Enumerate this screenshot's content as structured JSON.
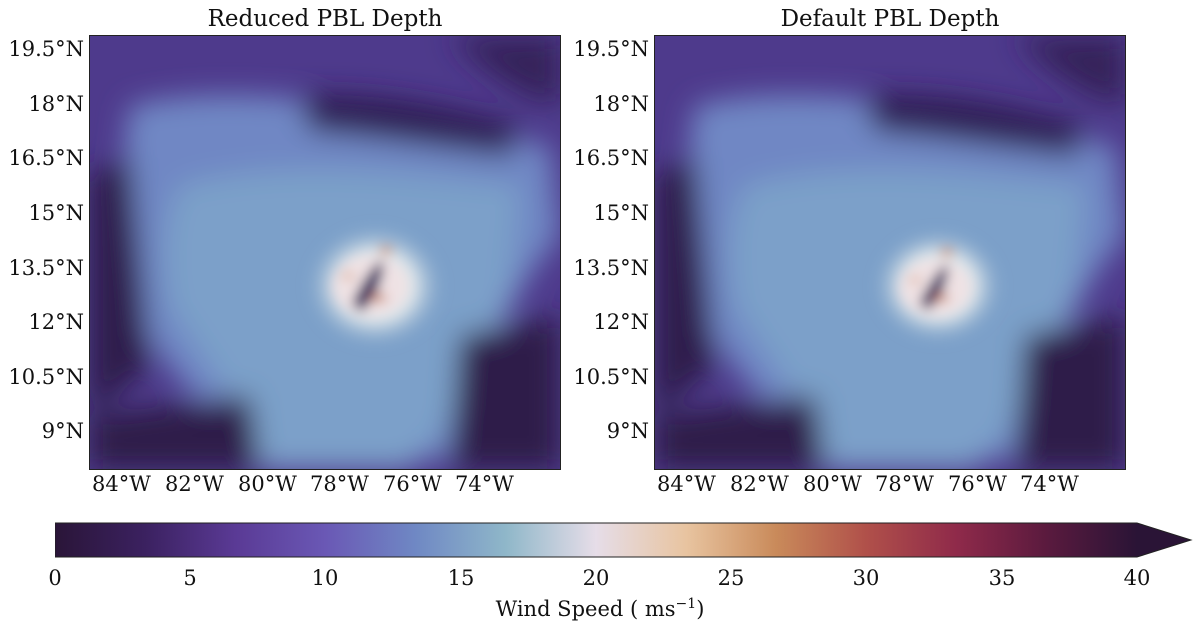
{
  "panels": [
    {
      "title": "Reduced PBL Depth"
    },
    {
      "title": "Default PBL Depth"
    }
  ],
  "lat_ticks": [
    "19.5°N",
    "18°N",
    "16.5°N",
    "15°N",
    "13.5°N",
    "12°N",
    "10.5°N",
    "9°N"
  ],
  "lon_ticks": [
    "84°W",
    "82°W",
    "80°W",
    "78°W",
    "76°W",
    "74°W"
  ],
  "colorbar": {
    "ticks": [
      "0",
      "5",
      "10",
      "15",
      "20",
      "25",
      "30",
      "35",
      "40"
    ],
    "label": "Wind Speed ( ms",
    "label_sup": "−1",
    "label_close": ")",
    "range": [
      0,
      40
    ],
    "extend": "max",
    "colors": [
      "#2a1538",
      "#3b2160",
      "#5a3a95",
      "#6a58b5",
      "#6f88c4",
      "#8fb7c9",
      "#e6dde8",
      "#e8c4a0",
      "#c98a5a",
      "#b0504a",
      "#8f2a4a",
      "#5a1a3e",
      "#2a1436"
    ]
  },
  "maps": {
    "storm_center_lat": 13.5,
    "storm_center_lon": -77.5
  }
}
